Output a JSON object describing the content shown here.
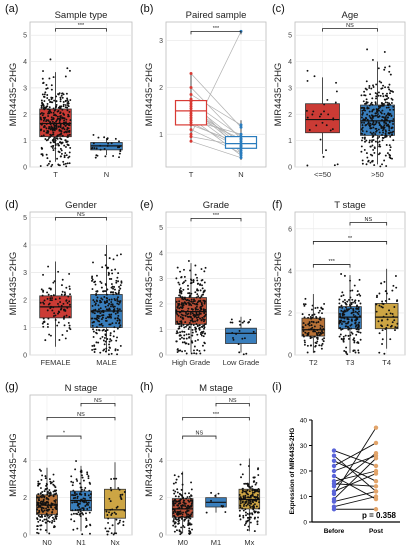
{
  "ylabel_common": "MIR4435−2HG",
  "chart_data": [
    {
      "id": "a",
      "panel_label": "(a)",
      "type": "box",
      "title": "Sample type",
      "ylabel": "MIR4435−2HG",
      "ylim": [
        0,
        5.5
      ],
      "yticks": [
        0,
        1,
        2,
        3,
        4,
        5
      ],
      "categories": [
        "T",
        "N"
      ],
      "colors": [
        "#c8302a",
        "#2e77b8"
      ],
      "boxes": [
        {
          "q1": 1.15,
          "median": 1.65,
          "q3": 2.2,
          "wlo": 0.2,
          "whi": 3.6,
          "n": 360
        },
        {
          "q1": 0.65,
          "median": 0.8,
          "q3": 0.93,
          "wlo": 0.45,
          "whi": 1.1,
          "n": 30
        }
      ],
      "comparisons": [
        {
          "from": 0,
          "to": 1,
          "label": "***",
          "y": 5.25
        }
      ]
    },
    {
      "id": "b",
      "panel_label": "(b)",
      "type": "paired-box",
      "title": "Paired sample",
      "ylabel": "MIR4435−2HG",
      "ylim": [
        0.3,
        3.4
      ],
      "yticks": [
        1,
        2,
        3
      ],
      "categories": [
        "T",
        "N"
      ],
      "colors": [
        "#d83a34",
        "#2a7cbd"
      ],
      "boxes": [
        {
          "q1": 1.2,
          "median": 1.5,
          "q3": 1.72,
          "wlo": 0.85,
          "whi": 2.3
        },
        {
          "q1": 0.7,
          "median": 0.8,
          "q3": 0.95,
          "wlo": 0.45,
          "whi": 1.3
        }
      ],
      "pairs": [
        [
          2.3,
          1.15
        ],
        [
          2.0,
          0.9
        ],
        [
          1.85,
          1.2
        ],
        [
          1.75,
          0.6
        ],
        [
          1.7,
          0.95
        ],
        [
          1.65,
          0.8
        ],
        [
          1.6,
          0.75
        ],
        [
          1.55,
          0.7
        ],
        [
          1.5,
          0.85
        ],
        [
          1.45,
          0.65
        ],
        [
          1.4,
          0.9
        ],
        [
          1.35,
          0.55
        ],
        [
          1.3,
          1.0
        ],
        [
          1.25,
          0.7
        ],
        [
          1.2,
          0.8
        ],
        [
          1.1,
          0.6
        ],
        [
          1.0,
          3.2
        ],
        [
          0.95,
          0.75
        ],
        [
          0.85,
          0.5
        ]
      ],
      "comparisons": [
        {
          "from": 0,
          "to": 1,
          "label": "***",
          "y": 3.2
        }
      ]
    },
    {
      "id": "c",
      "panel_label": "(c)",
      "type": "box",
      "title": "Age",
      "ylabel": "MIR4435−2HG",
      "ylim": [
        0,
        5.5
      ],
      "yticks": [
        0,
        1,
        2,
        3,
        4,
        5
      ],
      "categories": [
        "<=50",
        ">50"
      ],
      "colors": [
        "#c8302a",
        "#2e77b8"
      ],
      "boxes": [
        {
          "q1": 1.3,
          "median": 1.8,
          "q3": 2.4,
          "wlo": 0.5,
          "whi": 3.4,
          "n": 30
        },
        {
          "q1": 1.2,
          "median": 1.75,
          "q3": 2.35,
          "wlo": 0.1,
          "whi": 4.0,
          "n": 330
        }
      ],
      "comparisons": [
        {
          "from": 0,
          "to": 1,
          "label": "NS",
          "y": 5.25
        }
      ]
    },
    {
      "id": "d",
      "panel_label": "(d)",
      "type": "box",
      "title": "Gender",
      "ylabel": "MIR4435−2HG",
      "ylim": [
        0,
        5.2
      ],
      "yticks": [
        0,
        1,
        2,
        3,
        4,
        5
      ],
      "categories": [
        "FEMALE",
        "MALE"
      ],
      "colors": [
        "#c8302a",
        "#2e77b8"
      ],
      "boxes": [
        {
          "q1": 1.35,
          "median": 1.75,
          "q3": 2.15,
          "wlo": 0.3,
          "whi": 3.4,
          "n": 100
        },
        {
          "q1": 1.0,
          "median": 1.6,
          "q3": 2.2,
          "wlo": 0.1,
          "whi": 4.0,
          "n": 260
        }
      ],
      "comparisons": [
        {
          "from": 0,
          "to": 1,
          "label": "NS",
          "y": 5.0
        }
      ]
    },
    {
      "id": "e",
      "panel_label": "(e)",
      "type": "box",
      "title": "Grade",
      "ylabel": "MIR4435−2HG",
      "ylim": [
        0,
        5.6
      ],
      "yticks": [
        0,
        1,
        2,
        3,
        4,
        5
      ],
      "categories": [
        "High Grade",
        "Low Grade"
      ],
      "colors": [
        "#b5462c",
        "#2e77b8"
      ],
      "boxes": [
        {
          "q1": 1.2,
          "median": 1.7,
          "q3": 2.25,
          "wlo": 0.1,
          "whi": 3.6,
          "n": 330
        },
        {
          "q1": 0.45,
          "median": 0.85,
          "q3": 1.05,
          "wlo": 0.1,
          "whi": 1.5,
          "n": 22
        }
      ],
      "comparisons": [
        {
          "from": 0,
          "to": 1,
          "label": "***",
          "y": 5.35
        }
      ]
    },
    {
      "id": "f",
      "panel_label": "(f)",
      "type": "box",
      "title": "T stage",
      "ylabel": "MIR4435−2HG",
      "ylim": [
        0,
        6.8
      ],
      "yticks": [
        0,
        2,
        4,
        6
      ],
      "categories": [
        "T2",
        "T3",
        "T4"
      ],
      "colors": [
        "#b46a2c",
        "#2e77b8",
        "#caa03a"
      ],
      "boxes": [
        {
          "q1": 0.9,
          "median": 1.2,
          "q3": 1.75,
          "wlo": 0.1,
          "whi": 2.9,
          "n": 110
        },
        {
          "q1": 1.25,
          "median": 1.8,
          "q3": 2.3,
          "wlo": 0.1,
          "whi": 3.8,
          "n": 180
        },
        {
          "q1": 1.25,
          "median": 1.8,
          "q3": 2.45,
          "wlo": 0.3,
          "whi": 4.1,
          "n": 55
        }
      ],
      "comparisons": [
        {
          "from": 0,
          "to": 1,
          "label": "***",
          "y": 4.3
        },
        {
          "from": 0,
          "to": 2,
          "label": "**",
          "y": 5.4
        },
        {
          "from": 1,
          "to": 2,
          "label": "NS",
          "y": 6.3
        }
      ]
    },
    {
      "id": "g",
      "panel_label": "(g)",
      "type": "box",
      "title": "N stage",
      "ylabel": "MIR4435−2HG",
      "ylim": [
        0,
        7.5
      ],
      "yticks": [
        0,
        2,
        4
      ],
      "categories": [
        "N0",
        "N1",
        "Nx"
      ],
      "colors": [
        "#b46a2c",
        "#2e77b8",
        "#caa03a"
      ],
      "boxes": [
        {
          "q1": 1.1,
          "median": 1.6,
          "q3": 2.15,
          "wlo": 0.1,
          "whi": 3.6,
          "n": 200
        },
        {
          "q1": 1.3,
          "median": 1.85,
          "q3": 2.35,
          "wlo": 0.2,
          "whi": 3.7,
          "n": 110
        },
        {
          "q1": 0.9,
          "median": 1.35,
          "q3": 2.45,
          "wlo": 0.1,
          "whi": 3.9,
          "n": 45
        }
      ],
      "comparisons": [
        {
          "from": 0,
          "to": 1,
          "label": "*",
          "y": 5.3
        },
        {
          "from": 0,
          "to": 2,
          "label": "NS",
          "y": 6.3
        },
        {
          "from": 1,
          "to": 2,
          "label": "NS",
          "y": 7.05
        }
      ]
    },
    {
      "id": "h",
      "panel_label": "(h)",
      "type": "box",
      "title": "M stage",
      "ylabel": "MIR4435−2HG",
      "ylim": [
        0,
        7.5
      ],
      "yticks": [
        0,
        2,
        4
      ],
      "categories": [
        "M0",
        "M1",
        "Mx"
      ],
      "colors": [
        "#b5462c",
        "#2e77b8",
        "#caa03a"
      ],
      "boxes": [
        {
          "q1": 0.95,
          "median": 1.4,
          "q3": 1.95,
          "wlo": 0.1,
          "whi": 3.4,
          "n": 180
        },
        {
          "q1": 1.5,
          "median": 1.75,
          "q3": 2.0,
          "wlo": 1.2,
          "whi": 2.2,
          "n": 9
        },
        {
          "q1": 1.4,
          "median": 1.9,
          "q3": 2.45,
          "wlo": 0.2,
          "whi": 4.1,
          "n": 180
        }
      ],
      "comparisons": [
        {
          "from": 0,
          "to": 1,
          "label": "NS",
          "y": 5.3
        },
        {
          "from": 0,
          "to": 2,
          "label": "***",
          "y": 6.3
        },
        {
          "from": 1,
          "to": 2,
          "label": "NS",
          "y": 7.05
        }
      ]
    },
    {
      "id": "i",
      "panel_label": "(i)",
      "type": "paired-dot",
      "ylabel": "Expression of MIR4435-2HG",
      "ylim": [
        0,
        40
      ],
      "yticks": [
        0,
        10,
        20,
        30,
        40
      ],
      "categories": [
        "Before",
        "Post"
      ],
      "colors": [
        "#5a64d8",
        "#e2a46a"
      ],
      "pairs": [
        [
          28,
          22
        ],
        [
          26,
          12
        ],
        [
          24,
          16
        ],
        [
          22,
          31
        ],
        [
          20,
          26
        ],
        [
          18,
          9
        ],
        [
          16,
          20
        ],
        [
          15,
          14
        ],
        [
          14,
          27
        ],
        [
          12,
          19
        ],
        [
          11,
          37
        ],
        [
          9,
          25
        ],
        [
          8,
          12
        ],
        [
          6,
          10
        ],
        [
          5,
          5
        ]
      ],
      "annotation": "p = 0.358"
    }
  ]
}
